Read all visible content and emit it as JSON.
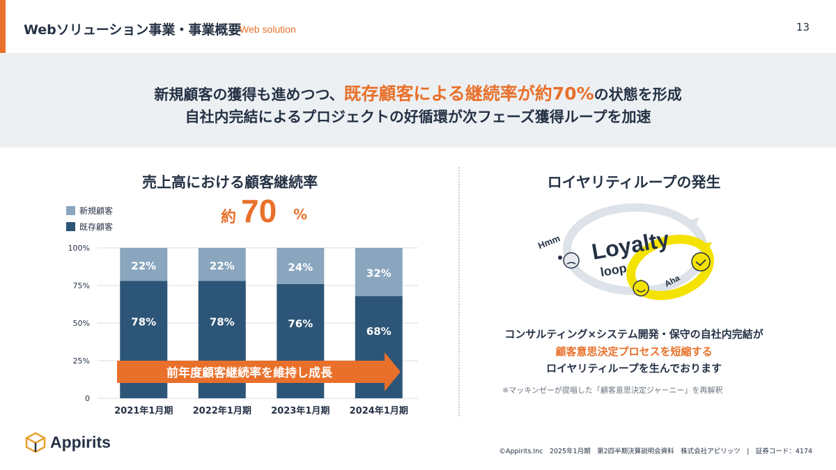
{
  "header": {
    "title": "Webソリューション事業・事業概要",
    "subtitle": "Web solution",
    "page_number": "13"
  },
  "headline": {
    "line1_pre": "新規顧客の獲得も進めつつ、",
    "line1_highlight": "既存顧客による継続率が約70%",
    "line1_post": "の状態を形成",
    "line2": "自社内完結によるプロジェクトの好循環が次フェーズ獲得ループを加速"
  },
  "left_panel": {
    "approx_prefix": "約",
    "approx_value": "70",
    "approx_unit": "%",
    "arrow_label": "前年度顧客継続率を維持し成長"
  },
  "chart_data": {
    "type": "bar",
    "stacked": true,
    "title": "売上高における顧客継続率",
    "categories": [
      "2021年1月期",
      "2022年1月期",
      "2023年1月期",
      "2024年1月期"
    ],
    "series": [
      {
        "name": "既存顧客",
        "values": [
          78,
          78,
          76,
          68
        ],
        "labels": [
          "78%",
          "78%",
          "76%",
          "68%"
        ],
        "color": "#2d5577"
      },
      {
        "name": "新規顧客",
        "values": [
          22,
          22,
          24,
          32
        ],
        "labels": [
          "22%",
          "22%",
          "24%",
          "32%"
        ],
        "color": "#8aa6bf"
      }
    ],
    "yticks": [
      "0",
      "25%",
      "50%",
      "75%",
      "100%"
    ],
    "ylim": [
      0,
      100
    ],
    "grid": true,
    "legend_position": "top-left"
  },
  "right_panel": {
    "title": "ロイヤリティループの発生",
    "diagram": {
      "word_big": "Loyalty",
      "word_small": "loop",
      "hmm": "Hmm",
      "aha": "Aha"
    },
    "line1": "コンサルティング×システム開発・保守の自社内完結が",
    "line2": "顧客意思決定プロセスを短縮する",
    "line3": "ロイヤリティループを生んでおります",
    "note": "※マッキンゼーが提唱した「顧客意思決定ジャーニー」を再解釈"
  },
  "logo": {
    "name": "Appirits"
  },
  "footer": {
    "text": "©Appirits.Inc　2025年1月期　第2四半期決算説明会資料　株式会社アピリッツ　|　証券コード：4174"
  },
  "colors": {
    "accent": "#e8702a",
    "navy": "#253245",
    "existing": "#2d5577",
    "new": "#8aa6bf",
    "band": "#edf0f3"
  }
}
